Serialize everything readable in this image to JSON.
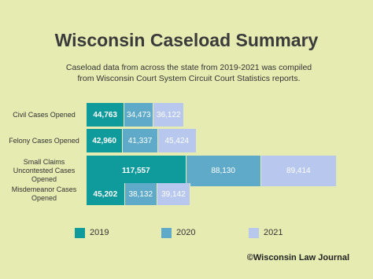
{
  "chart_data": {
    "type": "stacked-bar",
    "orientation": "horizontal",
    "title": "Wisconsin Caseload Summary",
    "subtitle": "Caseload data from across the state from 2019-2021 was compiled from Wisconsin Court System Circuit Court Statistics reports.",
    "categories": [
      "Civil Cases Opened",
      "Felony Cases Opened",
      "Small Claims Uncontested Cases Opened",
      "Misdemeanor Cases Opened"
    ],
    "series": [
      {
        "name": "2019",
        "color": "#0f9a9b",
        "values": [
          44763,
          42960,
          117557,
          45202
        ],
        "value_labels": [
          "44,763",
          "42,960",
          "117,557",
          "45,202"
        ]
      },
      {
        "name": "2020",
        "color": "#5fa9c9",
        "values": [
          34473,
          41337,
          88130,
          38132
        ],
        "value_labels": [
          "34,473",
          "41,337",
          "88,130",
          "38,132"
        ]
      },
      {
        "name": "2021",
        "color": "#b7c7ee",
        "values": [
          36122,
          45424,
          89414,
          39142
        ],
        "value_labels": [
          "36,122",
          "45,424",
          "89,414",
          "39,142"
        ]
      }
    ],
    "legend": "bottom",
    "source": "©Wisconsin Law Journal"
  }
}
